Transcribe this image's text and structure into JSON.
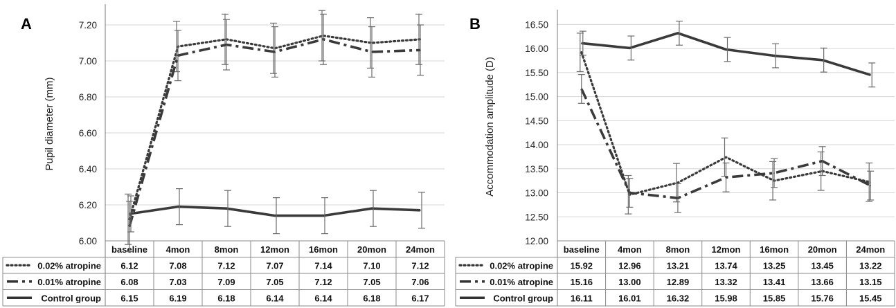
{
  "chart_data": [
    {
      "type": "line",
      "panel_label": "A",
      "ylabel": "Pupil diameter (mm)",
      "ylim": [
        6.0,
        7.3
      ],
      "yticks": [
        "6.00",
        "6.20",
        "6.40",
        "6.60",
        "6.80",
        "7.00",
        "7.20"
      ],
      "categories": [
        "baseline",
        "4mon",
        "8mon",
        "12mon",
        "16mon",
        "20mon",
        "24mon"
      ],
      "grid": true,
      "legend": "data table below chart",
      "series": [
        {
          "name": "0.02% atropine",
          "style": "dotted",
          "values": [
            6.12,
            7.08,
            7.12,
            7.07,
            7.14,
            7.1,
            7.12
          ],
          "display": [
            "6.12",
            "7.08",
            "7.12",
            "7.07",
            "7.14",
            "7.10",
            "7.12"
          ],
          "error": [
            0.14,
            0.14,
            0.14,
            0.14,
            0.14,
            0.14,
            0.14
          ]
        },
        {
          "name": "0.01% atropine",
          "style": "dashed",
          "values": [
            6.08,
            7.03,
            7.09,
            7.05,
            7.12,
            7.05,
            7.06
          ],
          "display": [
            "6.08",
            "7.03",
            "7.09",
            "7.05",
            "7.12",
            "7.05",
            "7.06"
          ],
          "error": [
            0.14,
            0.14,
            0.14,
            0.14,
            0.14,
            0.14,
            0.14
          ]
        },
        {
          "name": "Control group",
          "style": "solid",
          "values": [
            6.15,
            6.19,
            6.18,
            6.14,
            6.14,
            6.18,
            6.17
          ],
          "display": [
            "6.15",
            "6.19",
            "6.18",
            "6.14",
            "6.14",
            "6.18",
            "6.17"
          ],
          "error": [
            0.1,
            0.1,
            0.1,
            0.1,
            0.1,
            0.1,
            0.1
          ]
        }
      ]
    },
    {
      "type": "line",
      "panel_label": "B",
      "ylabel": "Accommodation amplitude (D)",
      "ylim": [
        12.0,
        16.75
      ],
      "yticks": [
        "12.00",
        "12.50",
        "13.00",
        "13.50",
        "14.00",
        "14.50",
        "15.00",
        "15.50",
        "16.00",
        "16.50"
      ],
      "categories": [
        "baseline",
        "4mon",
        "8mon",
        "12mon",
        "16mon",
        "20mon",
        "24mon"
      ],
      "grid": true,
      "legend": "data table below chart",
      "series": [
        {
          "name": "0.02% atropine",
          "style": "dotted",
          "values": [
            15.92,
            12.96,
            13.21,
            13.74,
            13.25,
            13.45,
            13.22
          ],
          "display": [
            "15.92",
            "12.96",
            "13.21",
            "13.74",
            "13.25",
            "13.45",
            "13.22"
          ],
          "error": [
            0.4,
            0.4,
            0.4,
            0.4,
            0.4,
            0.4,
            0.4
          ]
        },
        {
          "name": "0.01% atropine",
          "style": "dashed",
          "values": [
            15.16,
            13.0,
            12.89,
            13.32,
            13.41,
            13.66,
            13.15
          ],
          "display": [
            "15.16",
            "13.00",
            "12.89",
            "13.32",
            "13.41",
            "13.66",
            "13.15"
          ],
          "error": [
            0.3,
            0.3,
            0.3,
            0.3,
            0.3,
            0.3,
            0.3
          ]
        },
        {
          "name": "Control group",
          "style": "solid",
          "values": [
            16.11,
            16.01,
            16.32,
            15.98,
            15.85,
            15.76,
            15.45
          ],
          "display": [
            "16.11",
            "16.01",
            "16.32",
            "15.98",
            "15.85",
            "15.76",
            "15.45"
          ],
          "error": [
            0.25,
            0.25,
            0.25,
            0.25,
            0.25,
            0.25,
            0.25
          ]
        }
      ]
    }
  ]
}
